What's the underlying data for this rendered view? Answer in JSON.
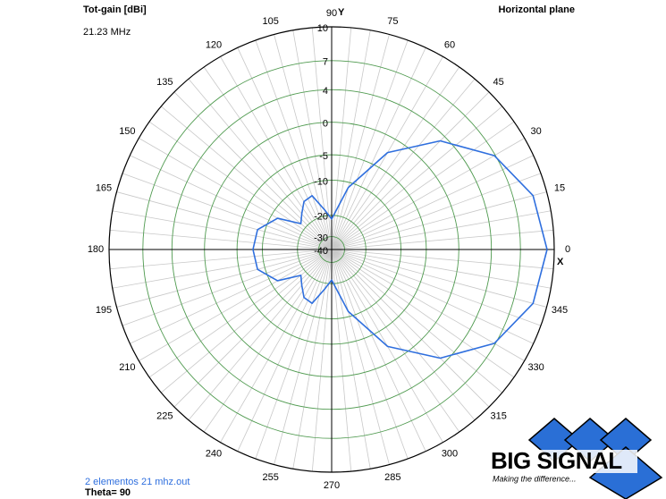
{
  "chart_data": {
    "type": "polar",
    "title": "Tot-gain [dBi]",
    "subtitle": "21.23 MHz",
    "plane": "Horizontal plane",
    "x_axis_label": "X",
    "y_axis_label": "Y",
    "rlim": [
      -40,
      10
    ],
    "rticks": [
      10,
      7,
      4,
      0,
      -5,
      -10,
      -20,
      -30,
      -40
    ],
    "angle_ticks": [
      0,
      15,
      30,
      45,
      60,
      75,
      90,
      105,
      120,
      135,
      150,
      165,
      180,
      195,
      210,
      225,
      240,
      255,
      270,
      285,
      300,
      315,
      330,
      345
    ],
    "series": [
      {
        "name": "2 elementos 21 mhz.out",
        "color": "#2f6fde",
        "x": [
          0,
          15,
          30,
          45,
          60,
          75,
          90,
          100,
          110,
          120,
          130,
          140,
          150,
          165,
          180,
          195,
          210,
          220,
          230,
          240,
          250,
          260,
          270,
          285,
          300,
          315,
          330,
          345,
          360
        ],
        "values": [
          9.4,
          8.8,
          6.9,
          3.3,
          -2.2,
          -11.2,
          -21.4,
          -17.9,
          -12.9,
          -13.4,
          -15.9,
          -17.9,
          -11.6,
          -8.4,
          -8.0,
          -8.4,
          -11.6,
          -17.9,
          -15.9,
          -13.4,
          -12.9,
          -17.9,
          -21.4,
          -11.2,
          -2.2,
          3.3,
          6.9,
          8.8,
          9.4
        ]
      }
    ],
    "theta_note": "Theta= 90"
  },
  "logo": {
    "name": "BIG SIGNAL",
    "tagline": "Making the difference..."
  }
}
